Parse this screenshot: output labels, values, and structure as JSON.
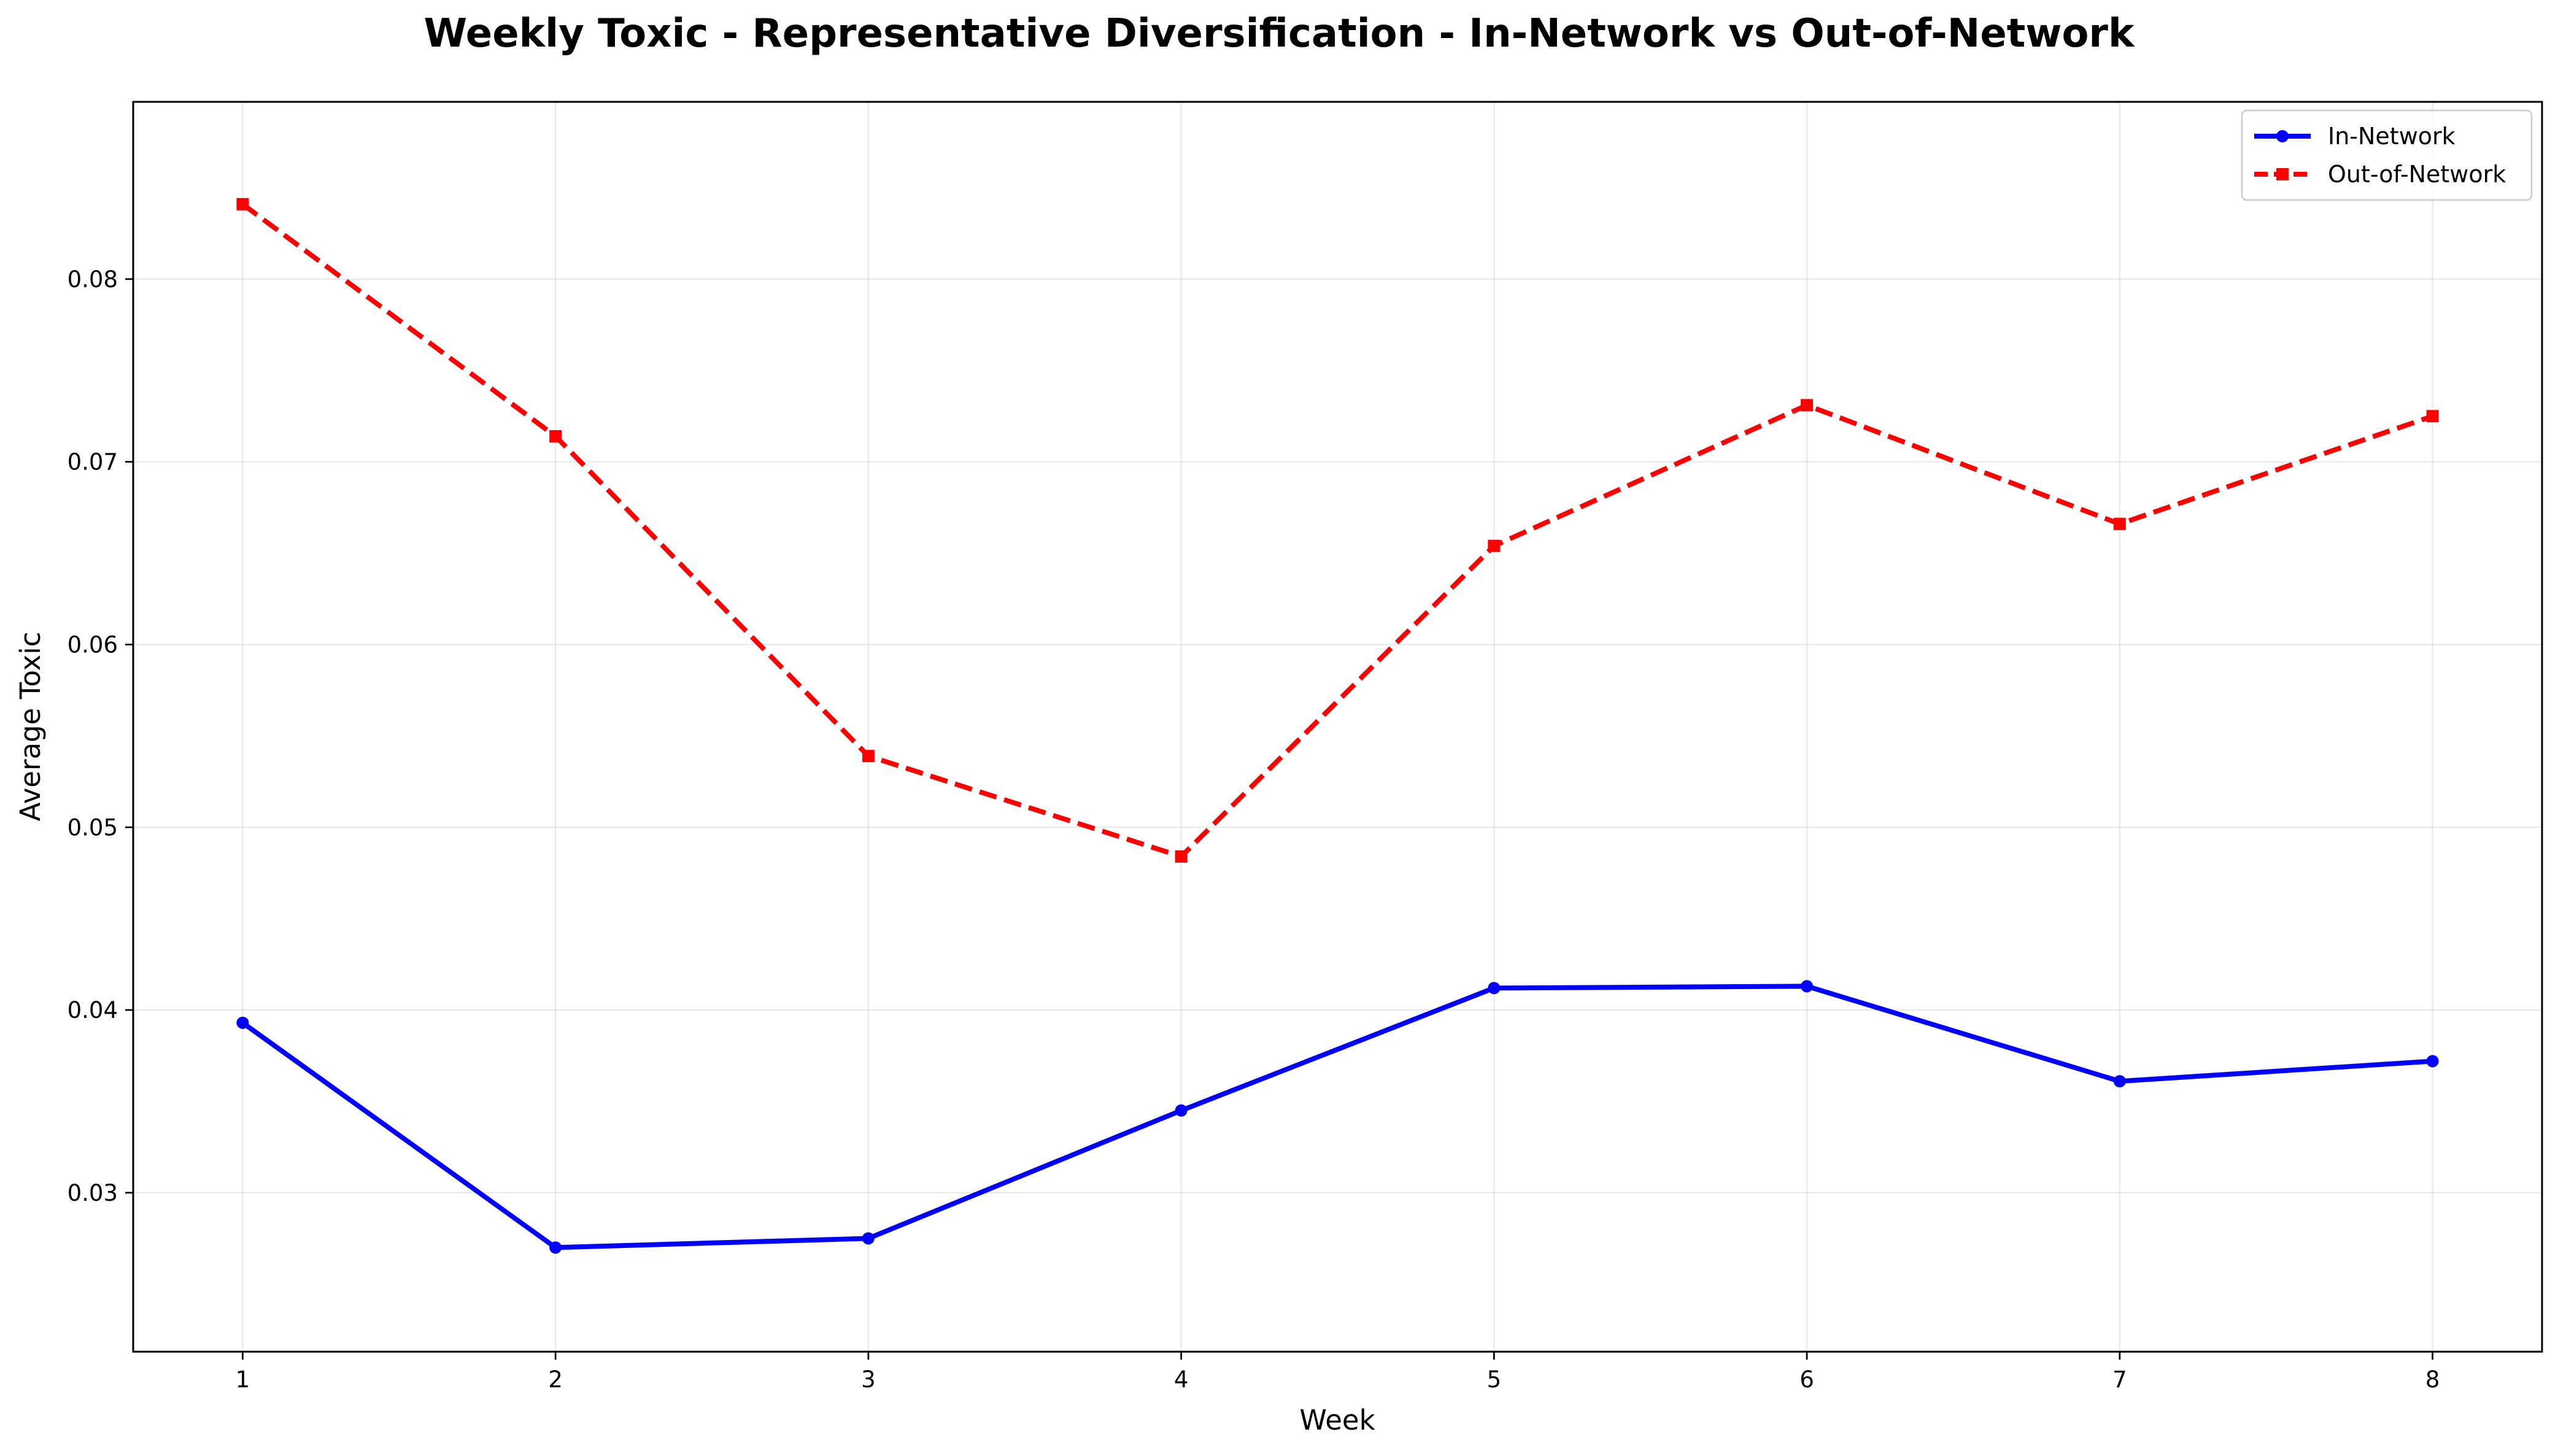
{
  "chart_data": {
    "type": "line",
    "title": "Weekly Toxic - Representative Diversification - In-Network vs Out-of-Network",
    "xlabel": "Week",
    "ylabel": "Average Toxic",
    "x": [
      1,
      2,
      3,
      4,
      5,
      6,
      7,
      8
    ],
    "x_ticks": [
      "1",
      "2",
      "3",
      "4",
      "5",
      "6",
      "7",
      "8"
    ],
    "y_ticks": [
      "0.03",
      "0.04",
      "0.05",
      "0.06",
      "0.07",
      "0.08"
    ],
    "y_tick_values": [
      0.03,
      0.04,
      0.05,
      0.06,
      0.07,
      0.08
    ],
    "xlim": [
      0.65,
      8.35
    ],
    "ylim": [
      0.0213,
      0.0897
    ],
    "grid": true,
    "legend_position": "top-right",
    "series": [
      {
        "name": "In-Network",
        "color": "#0000ff",
        "line_style": "solid",
        "marker": "circle",
        "values": [
          0.0393,
          0.027,
          0.0275,
          0.0345,
          0.0412,
          0.0413,
          0.0361,
          0.0372
        ]
      },
      {
        "name": "Out-of-Network",
        "color": "#ff0000",
        "line_style": "dashed",
        "marker": "square",
        "values": [
          0.0841,
          0.0714,
          0.0539,
          0.0484,
          0.0654,
          0.0731,
          0.0666,
          0.0725
        ]
      }
    ]
  }
}
